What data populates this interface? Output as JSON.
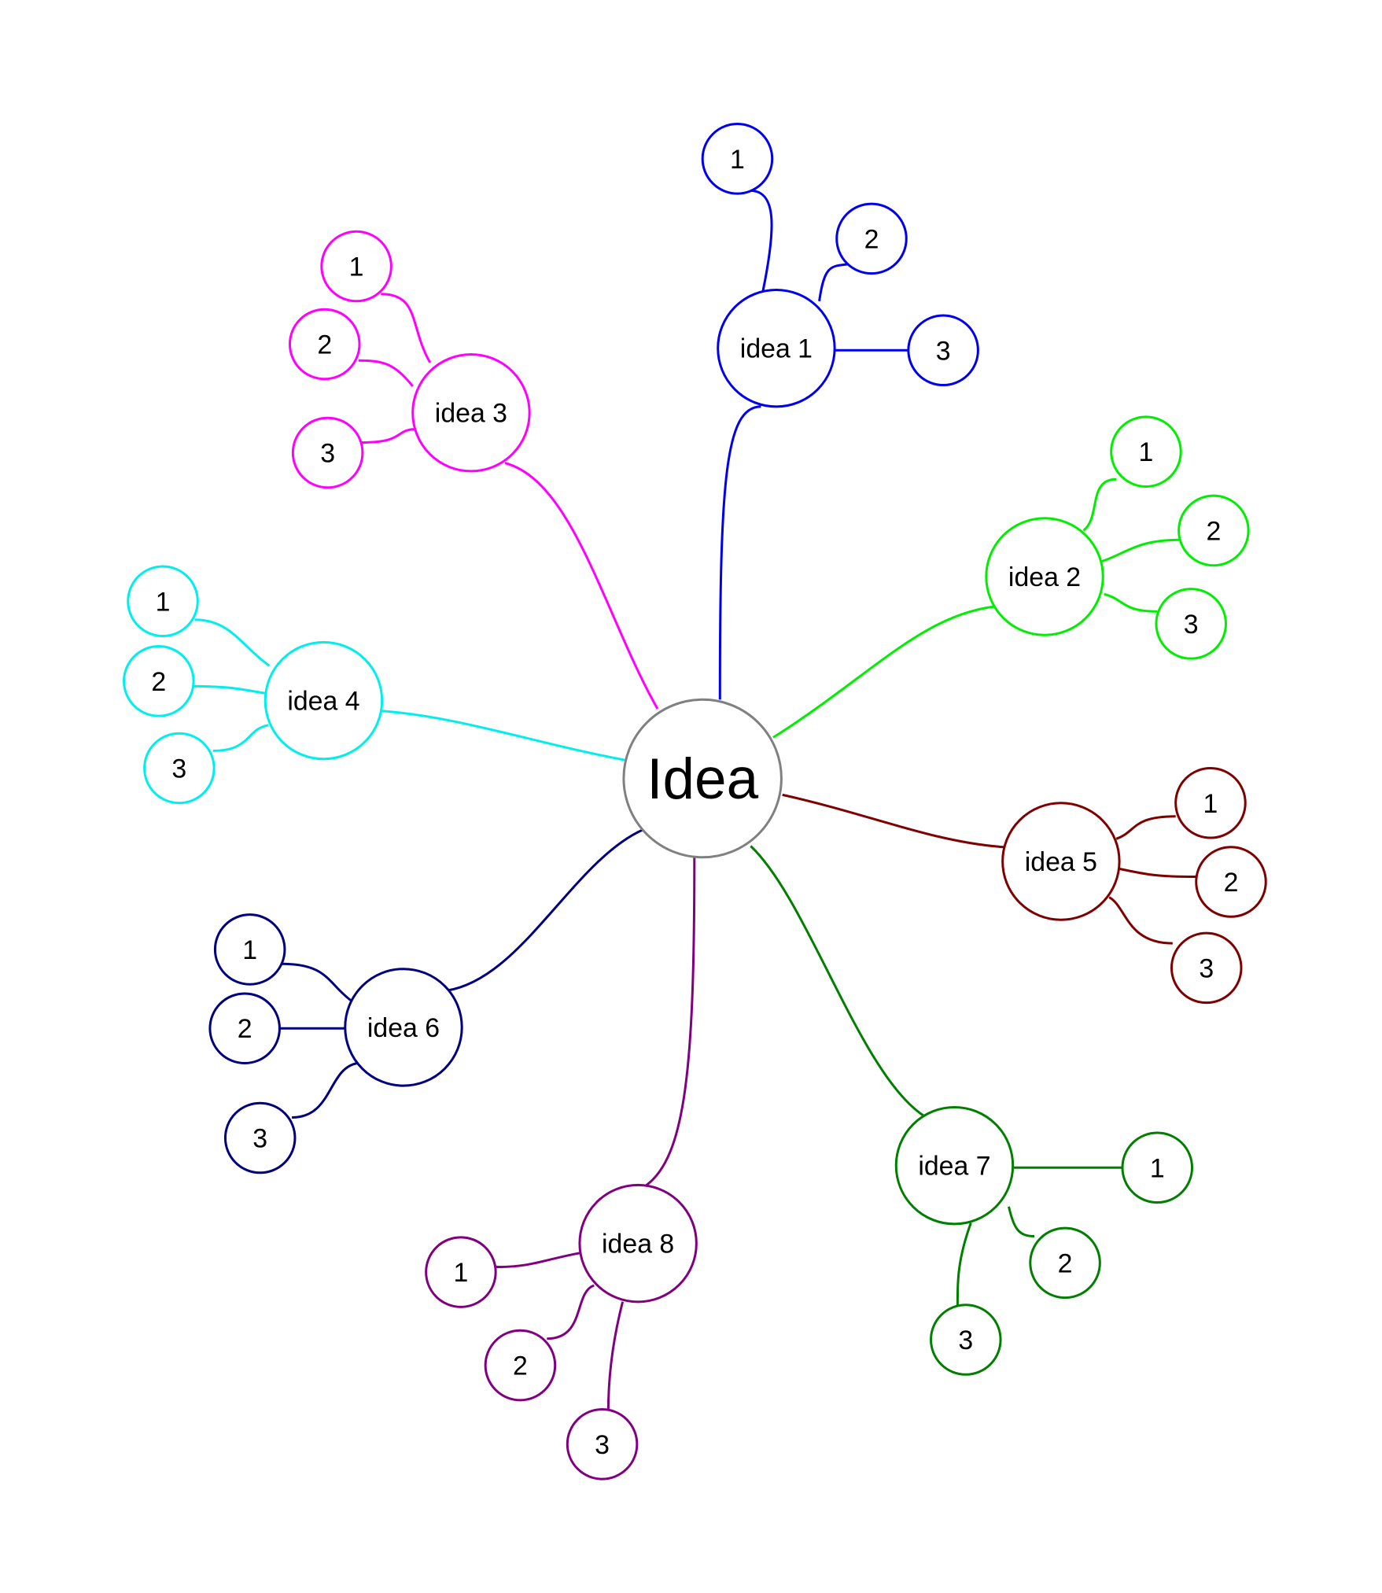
{
  "root": {
    "label": "Idea",
    "color": "#808080"
  },
  "branches": [
    {
      "label": "idea 1",
      "color": "#0000ee",
      "children": [
        "1",
        "2",
        "3"
      ]
    },
    {
      "label": "idea 2",
      "color": "#00ee00",
      "children": [
        "1",
        "2",
        "3"
      ]
    },
    {
      "label": "idea 3",
      "color": "#ff00ff",
      "children": [
        "1",
        "2",
        "3"
      ]
    },
    {
      "label": "idea 4",
      "color": "#00eeee",
      "children": [
        "1",
        "2",
        "3"
      ]
    },
    {
      "label": "idea 5",
      "color": "#7f0000",
      "children": [
        "1",
        "2",
        "3"
      ]
    },
    {
      "label": "idea 6",
      "color": "#000080",
      "children": [
        "1",
        "2",
        "3"
      ]
    },
    {
      "label": "idea 7",
      "color": "#007f00",
      "children": [
        "1",
        "2",
        "3"
      ]
    },
    {
      "label": "idea 8",
      "color": "#800080",
      "children": [
        "1",
        "2",
        "3"
      ]
    }
  ]
}
